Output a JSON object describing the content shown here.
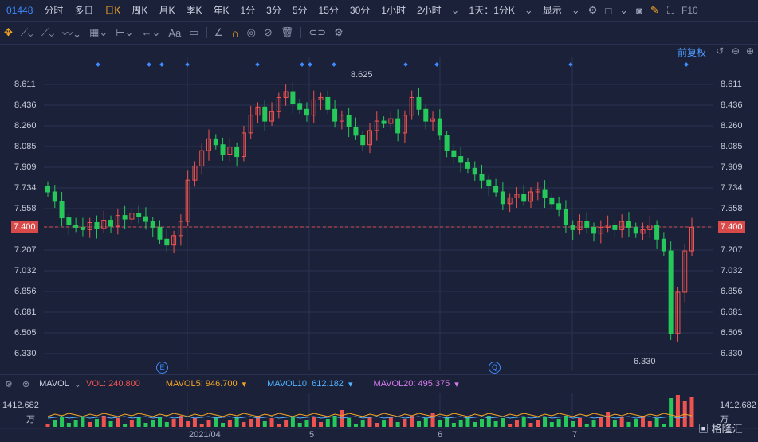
{
  "topbar": {
    "code": "01448",
    "periods": [
      "分时",
      "多日",
      "日K",
      "周K",
      "月K",
      "季K",
      "年K",
      "1分",
      "3分",
      "5分",
      "15分",
      "30分",
      "1小时",
      "2小时"
    ],
    "active": "日K",
    "period_select": "1天：1分K",
    "display": "显示",
    "f10": "F10"
  },
  "toolbar": {
    "text_tool": "Aa"
  },
  "fuquan": "前复权",
  "price_axis": [
    "8.611",
    "8.436",
    "8.260",
    "8.085",
    "7.909",
    "7.734",
    "7.558",
    "7.400",
    "7.207",
    "7.032",
    "6.856",
    "6.681",
    "6.505",
    "6.330"
  ],
  "current_price": "7.400",
  "annotations": {
    "high": "8.625",
    "low": "6.330"
  },
  "event_markers": [
    "E",
    "Q"
  ],
  "volume_header": {
    "indicator": "MAVOL",
    "vol": "VOL: 240.800",
    "mavol5": "MAVOL5: 946.700",
    "mavol10": "MAVOL10: 612.182",
    "mavol20": "MAVOL20: 495.375"
  },
  "volume_axis": {
    "max": "1412.682",
    "unit": "万"
  },
  "x_axis": [
    "2021/04",
    "5",
    "6",
    "7"
  ],
  "logo": "格隆汇",
  "colors": {
    "bg": "#1b2139",
    "up": "#ef5350",
    "down": "#26c85a",
    "accent": "#f5a623",
    "blue": "#3d8bff"
  }
}
